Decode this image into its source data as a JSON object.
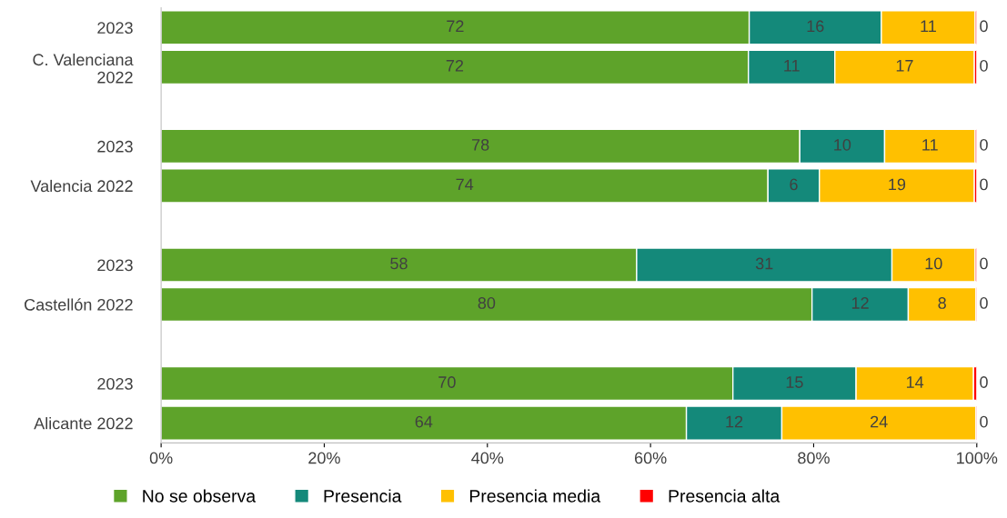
{
  "chart_data": {
    "type": "bar",
    "orientation": "horizontal",
    "stacked": true,
    "categories": [
      "2023",
      "C. Valenciana\n2022",
      null,
      "2023",
      "Valencia 2022",
      null,
      "2023",
      "Castellón 2022",
      null,
      "2023",
      "Alicante 2022"
    ],
    "series": [
      {
        "name": "No se observa",
        "color": "#5ea32a",
        "values": [
          72.1,
          72.0,
          null,
          78.3,
          74.4,
          null,
          58.3,
          79.8,
          null,
          70.1,
          64.4
        ],
        "value_labels": [
          "72",
          "72",
          null,
          "78",
          "74",
          null,
          "58",
          "80",
          null,
          "70",
          "64"
        ]
      },
      {
        "name": "Presencia",
        "color": "#14897a",
        "values": [
          16.2,
          10.6,
          null,
          10.4,
          6.3,
          null,
          31.3,
          11.8,
          null,
          15.1,
          11.7
        ],
        "value_labels": [
          "16",
          "11",
          null,
          "10",
          "6",
          null,
          "31",
          "12",
          null,
          "15",
          "12"
        ]
      },
      {
        "name": "Presencia media",
        "color": "#ffc000",
        "values": [
          11.5,
          17.1,
          null,
          11.1,
          19.0,
          null,
          10.2,
          8.3,
          null,
          14.4,
          23.8
        ],
        "value_labels": [
          "11",
          "17",
          null,
          "11",
          "19",
          null,
          "10",
          "8",
          null,
          "14",
          "24"
        ]
      },
      {
        "name": "Presencia alta",
        "color": "#ff0000",
        "values": [
          0.2,
          0.3,
          null,
          0.2,
          0.3,
          null,
          0.2,
          0.1,
          null,
          0.4,
          0.1
        ],
        "value_labels": [
          "0",
          "0",
          null,
          "0",
          "0",
          null,
          "0",
          "0",
          null,
          "0",
          "0"
        ]
      }
    ],
    "xlim": [
      0,
      100
    ],
    "xticks": [
      {
        "value": 0,
        "label": "0%"
      },
      {
        "value": 20,
        "label": "20%"
      },
      {
        "value": 40,
        "label": "40%"
      },
      {
        "value": 60,
        "label": "60%"
      },
      {
        "value": 80,
        "label": "80%"
      },
      {
        "value": 100,
        "label": "100%"
      }
    ],
    "grid": false,
    "legend": "bottom"
  }
}
